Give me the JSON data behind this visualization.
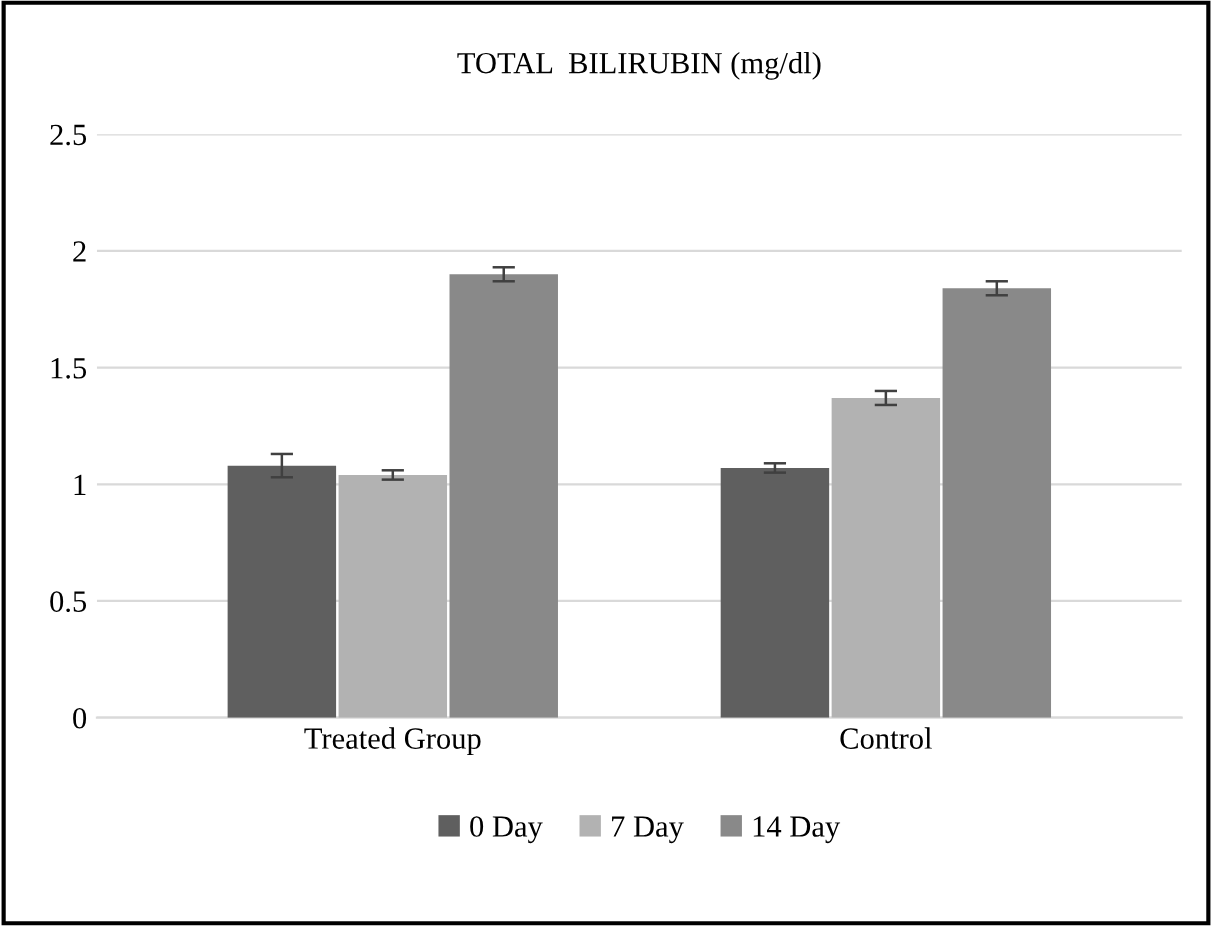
{
  "chart_data": {
    "type": "bar",
    "title": "TOTAL  BILIRUBIN (mg/dl)",
    "categories": [
      "Treated Group",
      "Control"
    ],
    "series": [
      {
        "name": "0 Day",
        "color": "#5f5f5f",
        "values": [
          1.08,
          1.07
        ],
        "errors": [
          0.05,
          0.02
        ]
      },
      {
        "name": "7 Day",
        "color": "#b2b2b2",
        "values": [
          1.04,
          1.37
        ],
        "errors": [
          0.02,
          0.03
        ]
      },
      {
        "name": "14 Day",
        "color": "#898989",
        "values": [
          1.9,
          1.84
        ],
        "errors": [
          0.03,
          0.03
        ]
      }
    ],
    "ylim": [
      0,
      2.5
    ],
    "yticks": [
      0,
      0.5,
      1,
      1.5,
      2,
      2.5
    ],
    "grid": "y",
    "legend": "bottom"
  }
}
